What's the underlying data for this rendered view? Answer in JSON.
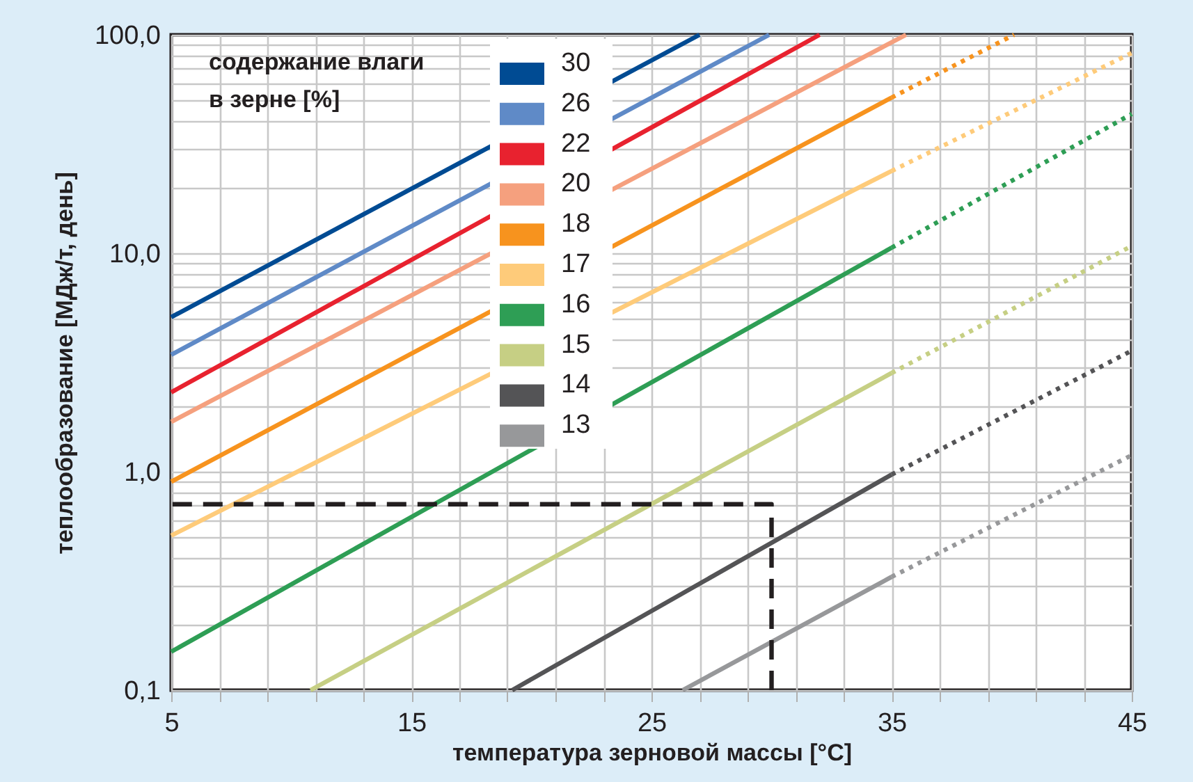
{
  "chart_data": {
    "type": "line",
    "xlabel": "температура зерновой массы [°C]",
    "ylabel": "теплообразование [МДж/т, день]",
    "legend_title": "содержание влаги в зерне [%]",
    "legend": "top",
    "log": "y",
    "grid": true,
    "xlim": [
      5,
      45
    ],
    "xticks": [
      5,
      {
        "value": 7,
        "label": null
      },
      {
        "value": 9,
        "label": null
      },
      {
        "value": 11,
        "label": null
      },
      {
        "value": 13,
        "label": null
      },
      15,
      {
        "value": 17,
        "label": null
      },
      {
        "value": 19,
        "label": null
      },
      {
        "value": 21,
        "label": null
      },
      {
        "value": 23,
        "label": null
      },
      25,
      {
        "value": 27,
        "label": null
      },
      {
        "value": 29,
        "label": null
      },
      {
        "value": 31,
        "label": null
      },
      {
        "value": 33,
        "label": null
      },
      35,
      {
        "value": 37,
        "label": null
      },
      {
        "value": 39,
        "label": null
      },
      {
        "value": 41,
        "label": null
      },
      {
        "value": 43,
        "label": null
      },
      45
    ],
    "ylim": [
      0.1,
      100
    ],
    "yticks": [
      {
        "value": 0.1,
        "label": "0,1"
      },
      {
        "value": 0.2,
        "label": null
      },
      {
        "value": 0.3,
        "label": null
      },
      {
        "value": 0.4,
        "label": null
      },
      {
        "value": 0.5,
        "label": null
      },
      {
        "value": 0.6,
        "label": null
      },
      {
        "value": 0.7,
        "label": null
      },
      {
        "value": 0.8,
        "label": null
      },
      {
        "value": 0.9,
        "label": null
      },
      {
        "value": 1,
        "label": "1,0"
      },
      {
        "value": 2,
        "label": null
      },
      {
        "value": 3,
        "label": null
      },
      {
        "value": 4,
        "label": null
      },
      {
        "value": 5,
        "label": null
      },
      {
        "value": 6,
        "label": null
      },
      {
        "value": 7,
        "label": null
      },
      {
        "value": 8,
        "label": null
      },
      {
        "value": 9,
        "label": null
      },
      {
        "value": 10,
        "label": "10,0"
      },
      {
        "value": 20,
        "label": null
      },
      {
        "value": 30,
        "label": null
      },
      {
        "value": 40,
        "label": null
      },
      {
        "value": 50,
        "label": null
      },
      {
        "value": 60,
        "label": null
      },
      {
        "value": 70,
        "label": null
      },
      {
        "value": 80,
        "label": null
      },
      {
        "value": 90,
        "label": null
      },
      {
        "value": 100,
        "label": "100,0"
      }
    ],
    "series": [
      {
        "name": "30",
        "color": "#004b93",
        "line_style": "solid",
        "x": [
          5,
          27.0
        ],
        "values": [
          5.1,
          100
        ]
      },
      {
        "name": "26",
        "color": "#5f8ac7",
        "line_style": "solid",
        "x": [
          5,
          29.9
        ],
        "values": [
          3.43,
          100
        ]
      },
      {
        "name": "22",
        "color": "#e8222f",
        "line_style": "solid",
        "x": [
          5,
          32.0
        ],
        "values": [
          2.31,
          100
        ]
      },
      {
        "name": "20",
        "color": "#f5a07e",
        "line_style": "solid",
        "x": [
          5,
          35.6
        ],
        "values": [
          1.69,
          100
        ]
      },
      {
        "name": "18",
        "color": "#f7931e",
        "line_style": "solid",
        "x": [
          5,
          35
        ],
        "values": [
          0.9,
          51.6
        ]
      },
      {
        "name": "17",
        "color": "#fecb7a",
        "line_style": "solid",
        "x": [
          5,
          35
        ],
        "values": [
          0.51,
          23.8
        ]
      },
      {
        "name": "16",
        "color": "#2e9e55",
        "line_style": "solid",
        "x": [
          5,
          35
        ],
        "values": [
          0.15,
          10.6
        ]
      },
      {
        "name": "15",
        "color": "#c6cf84",
        "line_style": "solid",
        "x": [
          10.8,
          35
        ],
        "values": [
          0.1,
          2.83
        ]
      },
      {
        "name": "14",
        "color": "#545456",
        "line_style": "solid",
        "x": [
          19.2,
          35
        ],
        "values": [
          0.1,
          0.97
        ]
      },
      {
        "name": "13",
        "color": "#97989a",
        "line_style": "solid",
        "x": [
          26.3,
          35
        ],
        "values": [
          0.1,
          0.33
        ]
      },
      {
        "color": "#f7931e",
        "line_style": "dotted",
        "x": [
          35,
          40.1
        ],
        "values": [
          51.6,
          100
        ]
      },
      {
        "color": "#fecb7a",
        "line_style": "dotted",
        "x": [
          35,
          45
        ],
        "values": [
          23.8,
          82.6
        ]
      },
      {
        "color": "#2e9e55",
        "line_style": "dotted",
        "x": [
          35,
          45
        ],
        "values": [
          10.6,
          43.4
        ]
      },
      {
        "color": "#c6cf84",
        "line_style": "dotted",
        "x": [
          35,
          45
        ],
        "values": [
          2.83,
          10.8
        ]
      },
      {
        "color": "#545456",
        "line_style": "dotted",
        "x": [
          35,
          45
        ],
        "values": [
          0.97,
          3.58
        ]
      },
      {
        "color": "#97989a",
        "line_style": "dotted",
        "x": [
          35,
          45
        ],
        "values": [
          0.33,
          1.19
        ]
      },
      {
        "color": "#231f20",
        "line_style": "dashed",
        "x": [
          30,
          30,
          5
        ],
        "values": [
          0.1,
          0.71,
          0.71
        ]
      }
    ]
  }
}
